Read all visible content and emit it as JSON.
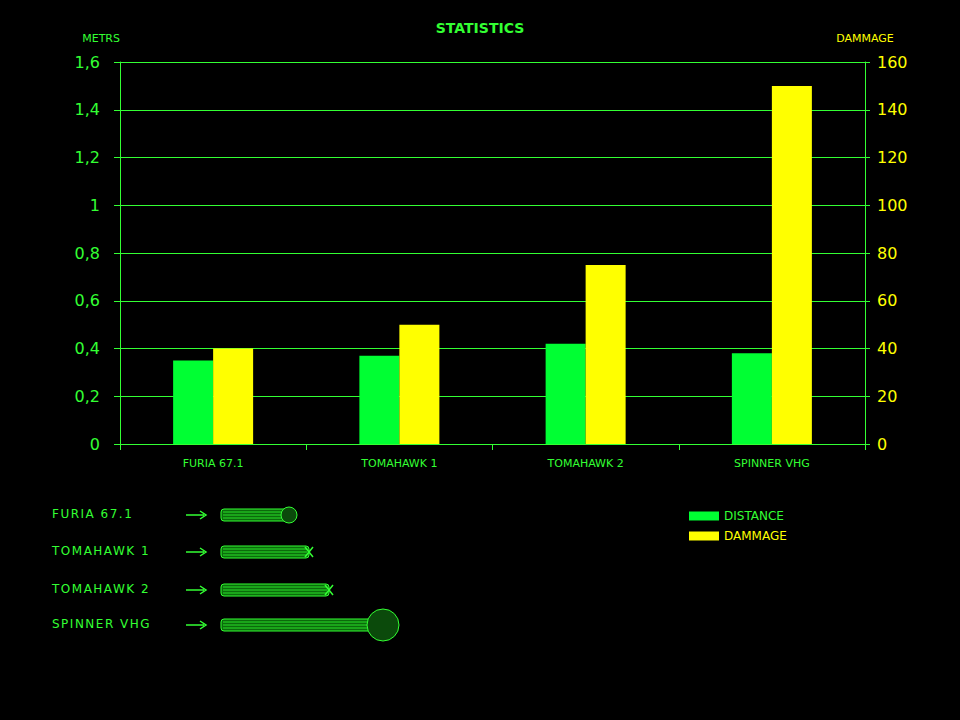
{
  "chart_data": {
    "type": "bar",
    "title": "STATISTICS",
    "y_label": "METRS",
    "y2_label": "DAMMAGE",
    "categories": [
      "FURIA 67.1",
      "TOMAHAWK 1",
      "TOMAHAWK 2",
      "SPINNER VHG"
    ],
    "series": [
      {
        "name": "DISTANCE",
        "color": "#00ff33",
        "values": [
          0.35,
          0.37,
          0.42,
          0.38
        ]
      },
      {
        "name": "DAMMAGE",
        "color": "#ffff00",
        "values": [
          40,
          50,
          75,
          150
        ],
        "axis": "y2"
      }
    ],
    "ylim": [
      0,
      1.6
    ],
    "yticks": [
      0,
      {
        "value": 0.2,
        "label": "0,2"
      },
      {
        "value": 0.4,
        "label": "0,4"
      },
      {
        "value": 0.6,
        "label": "0,6"
      },
      {
        "value": 0.8,
        "label": "0,8"
      },
      1,
      {
        "value": 1.2,
        "label": "1,2"
      },
      {
        "value": 1.4,
        "label": "1,4"
      },
      {
        "value": 1.6,
        "label": "1,6"
      }
    ],
    "y2lim": [
      0,
      160
    ],
    "y2ticks": [
      0,
      20,
      40,
      60,
      80,
      100,
      120,
      140,
      160
    ],
    "grid": true,
    "legend": "lower right"
  }
}
